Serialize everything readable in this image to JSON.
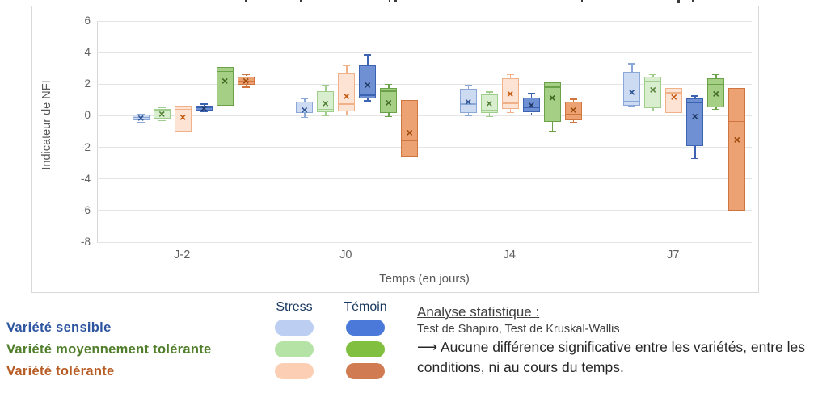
{
  "chart_data": {
    "type": "boxplot",
    "title": "",
    "xlabel": "Temps (en jours)",
    "ylabel": "Indicateur de NFI",
    "ylim": [
      -8,
      6
    ],
    "yticks": [
      6,
      4,
      2,
      0,
      -2,
      -4,
      -6,
      -8
    ],
    "grid": true,
    "categories": [
      "J-2",
      "J0",
      "J4",
      "J7"
    ],
    "series": [
      {
        "id": "stress-sensible",
        "name": "Stress - Variété sensible",
        "fill": "#ccdaf2",
        "stroke": "#8ba7d7",
        "marker": "#2f5597",
        "boxes": [
          {
            "low": -0.4,
            "q1": -0.3,
            "median": -0.1,
            "mean": -0.12,
            "q3": 0.05,
            "high": 0.1
          },
          {
            "low": -0.1,
            "q1": 0.15,
            "median": 0.55,
            "mean": 0.4,
            "q3": 0.9,
            "high": 1.1
          },
          {
            "low": 0.0,
            "q1": 0.15,
            "median": 0.75,
            "mean": 0.9,
            "q3": 1.7,
            "high": 1.95
          },
          {
            "low": 0.6,
            "q1": 0.65,
            "median": 0.9,
            "mean": 1.5,
            "q3": 2.8,
            "high": 3.3
          }
        ]
      },
      {
        "id": "stress-moyennement-tolerante",
        "name": "Stress - Variété moyennement tolérante",
        "fill": "#d9edcf",
        "stroke": "#9fcd8b",
        "marker": "#538135",
        "boxes": [
          {
            "low": -0.3,
            "q1": -0.2,
            "median": 0.35,
            "mean": 0.1,
            "q3": 0.45,
            "high": 0.5
          },
          {
            "low": 0.0,
            "q1": 0.25,
            "median": 0.4,
            "mean": 0.8,
            "q3": 1.55,
            "high": 1.95
          },
          {
            "low": -0.05,
            "q1": 0.15,
            "median": 0.35,
            "mean": 0.8,
            "q3": 1.35,
            "high": 1.5
          },
          {
            "low": 0.3,
            "q1": 0.5,
            "median": 2.2,
            "mean": 1.65,
            "q3": 2.45,
            "high": 2.6
          }
        ]
      },
      {
        "id": "stress-tolerante",
        "name": "Stress - Variété tolérante",
        "fill": "#fce3d4",
        "stroke": "#f0b088",
        "marker": "#c55a11",
        "boxes": [
          {
            "low": -1.0,
            "q1": -1.0,
            "median": 0.4,
            "mean": -0.1,
            "q3": 0.65,
            "high": 0.65
          },
          {
            "low": 0.05,
            "q1": 0.3,
            "median": 0.75,
            "mean": 1.25,
            "q3": 2.7,
            "high": 3.2
          },
          {
            "low": 0.2,
            "q1": 0.45,
            "median": 0.8,
            "mean": 1.4,
            "q3": 2.35,
            "high": 2.6
          },
          {
            "low": 0.2,
            "q1": 0.2,
            "median": 1.45,
            "mean": 1.2,
            "q3": 1.75,
            "high": 1.75
          }
        ]
      },
      {
        "id": "temoin-sensible",
        "name": "Témoin - Variété sensible",
        "fill": "#6f90d3",
        "stroke": "#3c63b1",
        "marker": "#1f3864",
        "boxes": [
          {
            "low": 0.25,
            "q1": 0.35,
            "median": 0.5,
            "mean": 0.5,
            "q3": 0.65,
            "high": 0.75
          },
          {
            "low": 0.95,
            "q1": 1.1,
            "median": 1.3,
            "mean": 1.95,
            "q3": 3.2,
            "high": 3.85
          },
          {
            "low": 0.05,
            "q1": 0.2,
            "median": 0.5,
            "mean": 0.7,
            "q3": 1.15,
            "high": 1.4
          },
          {
            "low": -2.7,
            "q1": -1.9,
            "median": 0.85,
            "mean": -0.05,
            "q3": 1.1,
            "high": 1.25
          }
        ]
      },
      {
        "id": "temoin-moyennement-tolerante",
        "name": "Témoin - Variété moyennement tolérante",
        "fill": "#a5cf85",
        "stroke": "#6ba149",
        "marker": "#3e6622",
        "boxes": [
          {
            "low": 0.65,
            "q1": 0.65,
            "median": 2.8,
            "mean": 2.2,
            "q3": 3.1,
            "high": 3.1
          },
          {
            "low": -0.05,
            "q1": 0.15,
            "median": 1.55,
            "mean": 0.85,
            "q3": 1.75,
            "high": 2.0
          },
          {
            "low": -1.0,
            "q1": -0.4,
            "median": 1.8,
            "mean": 1.15,
            "q3": 2.1,
            "high": 2.1
          },
          {
            "low": 0.4,
            "q1": 0.55,
            "median": 2.0,
            "mean": 1.4,
            "q3": 2.35,
            "high": 2.6
          }
        ]
      },
      {
        "id": "temoin-tolerante",
        "name": "Témoin - Variété tolérante",
        "fill": "#eda273",
        "stroke": "#d1753f",
        "marker": "#9c4a0a",
        "boxes": [
          {
            "low": 1.8,
            "q1": 1.95,
            "median": 2.2,
            "mean": 2.2,
            "q3": 2.5,
            "high": 2.6
          },
          {
            "low": -2.6,
            "q1": -2.6,
            "median": -1.6,
            "mean": -1.05,
            "q3": 1.0,
            "high": 1.0
          },
          {
            "low": -0.45,
            "q1": -0.3,
            "median": 0.1,
            "mean": 0.4,
            "q3": 0.9,
            "high": 1.05
          },
          {
            "low": -6.0,
            "q1": -6.0,
            "median": -0.35,
            "mean": -1.5,
            "q3": 1.75,
            "high": 1.75
          }
        ]
      }
    ]
  },
  "legend": {
    "columns": [
      "Stress",
      "Témoin"
    ],
    "rows": [
      {
        "label": "Variété sensible",
        "label_color": "#2e55a0",
        "stress_color": "#bccef1",
        "temoin_color": "#4b79d9"
      },
      {
        "label": "Variété moyennement tolérante",
        "label_color": "#507e2a",
        "stress_color": "#b5e2a5",
        "temoin_color": "#80bf3f"
      },
      {
        "label": "Variété tolérante",
        "label_color": "#b85c25",
        "stress_color": "#fccfb5",
        "temoin_color": "#d17b52"
      }
    ]
  },
  "analysis": {
    "heading": "Analyse statistique :",
    "line1": "Test de Shapiro, Test de Kruskal-Wallis",
    "line2": "⟶ Aucune différence significative entre les variétés, entre les conditions, ni au cours du temps."
  },
  "clipped_title_marks": [
    {
      "x": 303,
      "w": 2,
      "h": 2
    },
    {
      "x": 371,
      "w": 3,
      "h": 3
    },
    {
      "x": 481,
      "w": 2,
      "h": 3
    },
    {
      "x": 488,
      "w": 3,
      "h": 2
    },
    {
      "x": 719,
      "w": 2,
      "h": 2
    },
    {
      "x": 838,
      "w": 3,
      "h": 4
    },
    {
      "x": 856,
      "w": 3,
      "h": 3
    }
  ]
}
